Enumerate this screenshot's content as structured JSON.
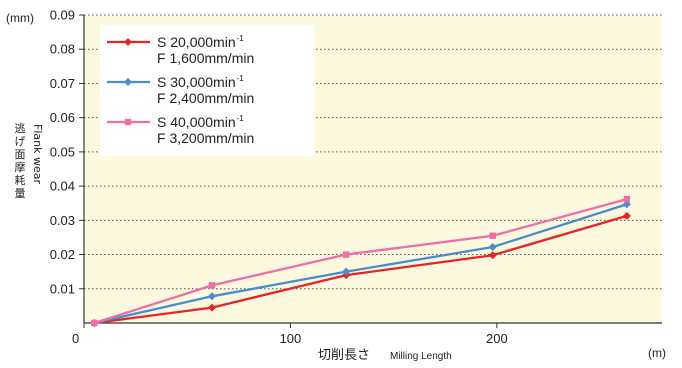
{
  "chart_data": {
    "type": "line",
    "ylabel_unit": "(mm)",
    "xlabel_unit": "(m)",
    "ylabel_ja": "逃げ面摩耗量",
    "ylabel_en": "Flank wear",
    "xlabel_ja": "切削長さ",
    "xlabel_en": "Milling Length",
    "xlim": [
      0,
      280
    ],
    "ylim": [
      0,
      0.09
    ],
    "x_ticks": [
      0,
      100,
      200
    ],
    "x_tick_labels": [
      "0",
      "100",
      "200"
    ],
    "y_ticks": [
      0.01,
      0.02,
      0.03,
      0.04,
      0.05,
      0.06,
      0.07,
      0.08,
      0.09
    ],
    "y_tick_labels": [
      "0.01",
      "0.02",
      "0.03",
      "0.04",
      "0.05",
      "0.06",
      "0.07",
      "0.08",
      "0.09"
    ],
    "grid": "horizontal dotted",
    "legend_position": "top-left",
    "series": [
      {
        "line1": "S 20,000min",
        "sup": "-1",
        "line2": "F 1,600mm/min",
        "color": "#e8232a",
        "marker": "diamond",
        "x": [
          5,
          62,
          127,
          198,
          263
        ],
        "y": [
          0.0,
          0.0045,
          0.014,
          0.0198,
          0.0313
        ]
      },
      {
        "line1": "S 30,000min",
        "sup": "-1",
        "line2": "F 2,400mm/min",
        "color": "#4a8ccc",
        "marker": "diamond",
        "x": [
          5,
          62,
          127,
          198,
          263
        ],
        "y": [
          0.0,
          0.0078,
          0.015,
          0.0222,
          0.0347
        ]
      },
      {
        "line1": "S 40,000min",
        "sup": "-1",
        "line2": "F 3,200mm/min",
        "color": "#ee6fa8",
        "marker": "square",
        "x": [
          5,
          62,
          127,
          198,
          263
        ],
        "y": [
          0.0,
          0.011,
          0.02,
          0.0255,
          0.0362
        ]
      }
    ],
    "colors": {
      "plot_background": "#fcf9df",
      "axis": "#333333",
      "grid": "#555555"
    }
  }
}
